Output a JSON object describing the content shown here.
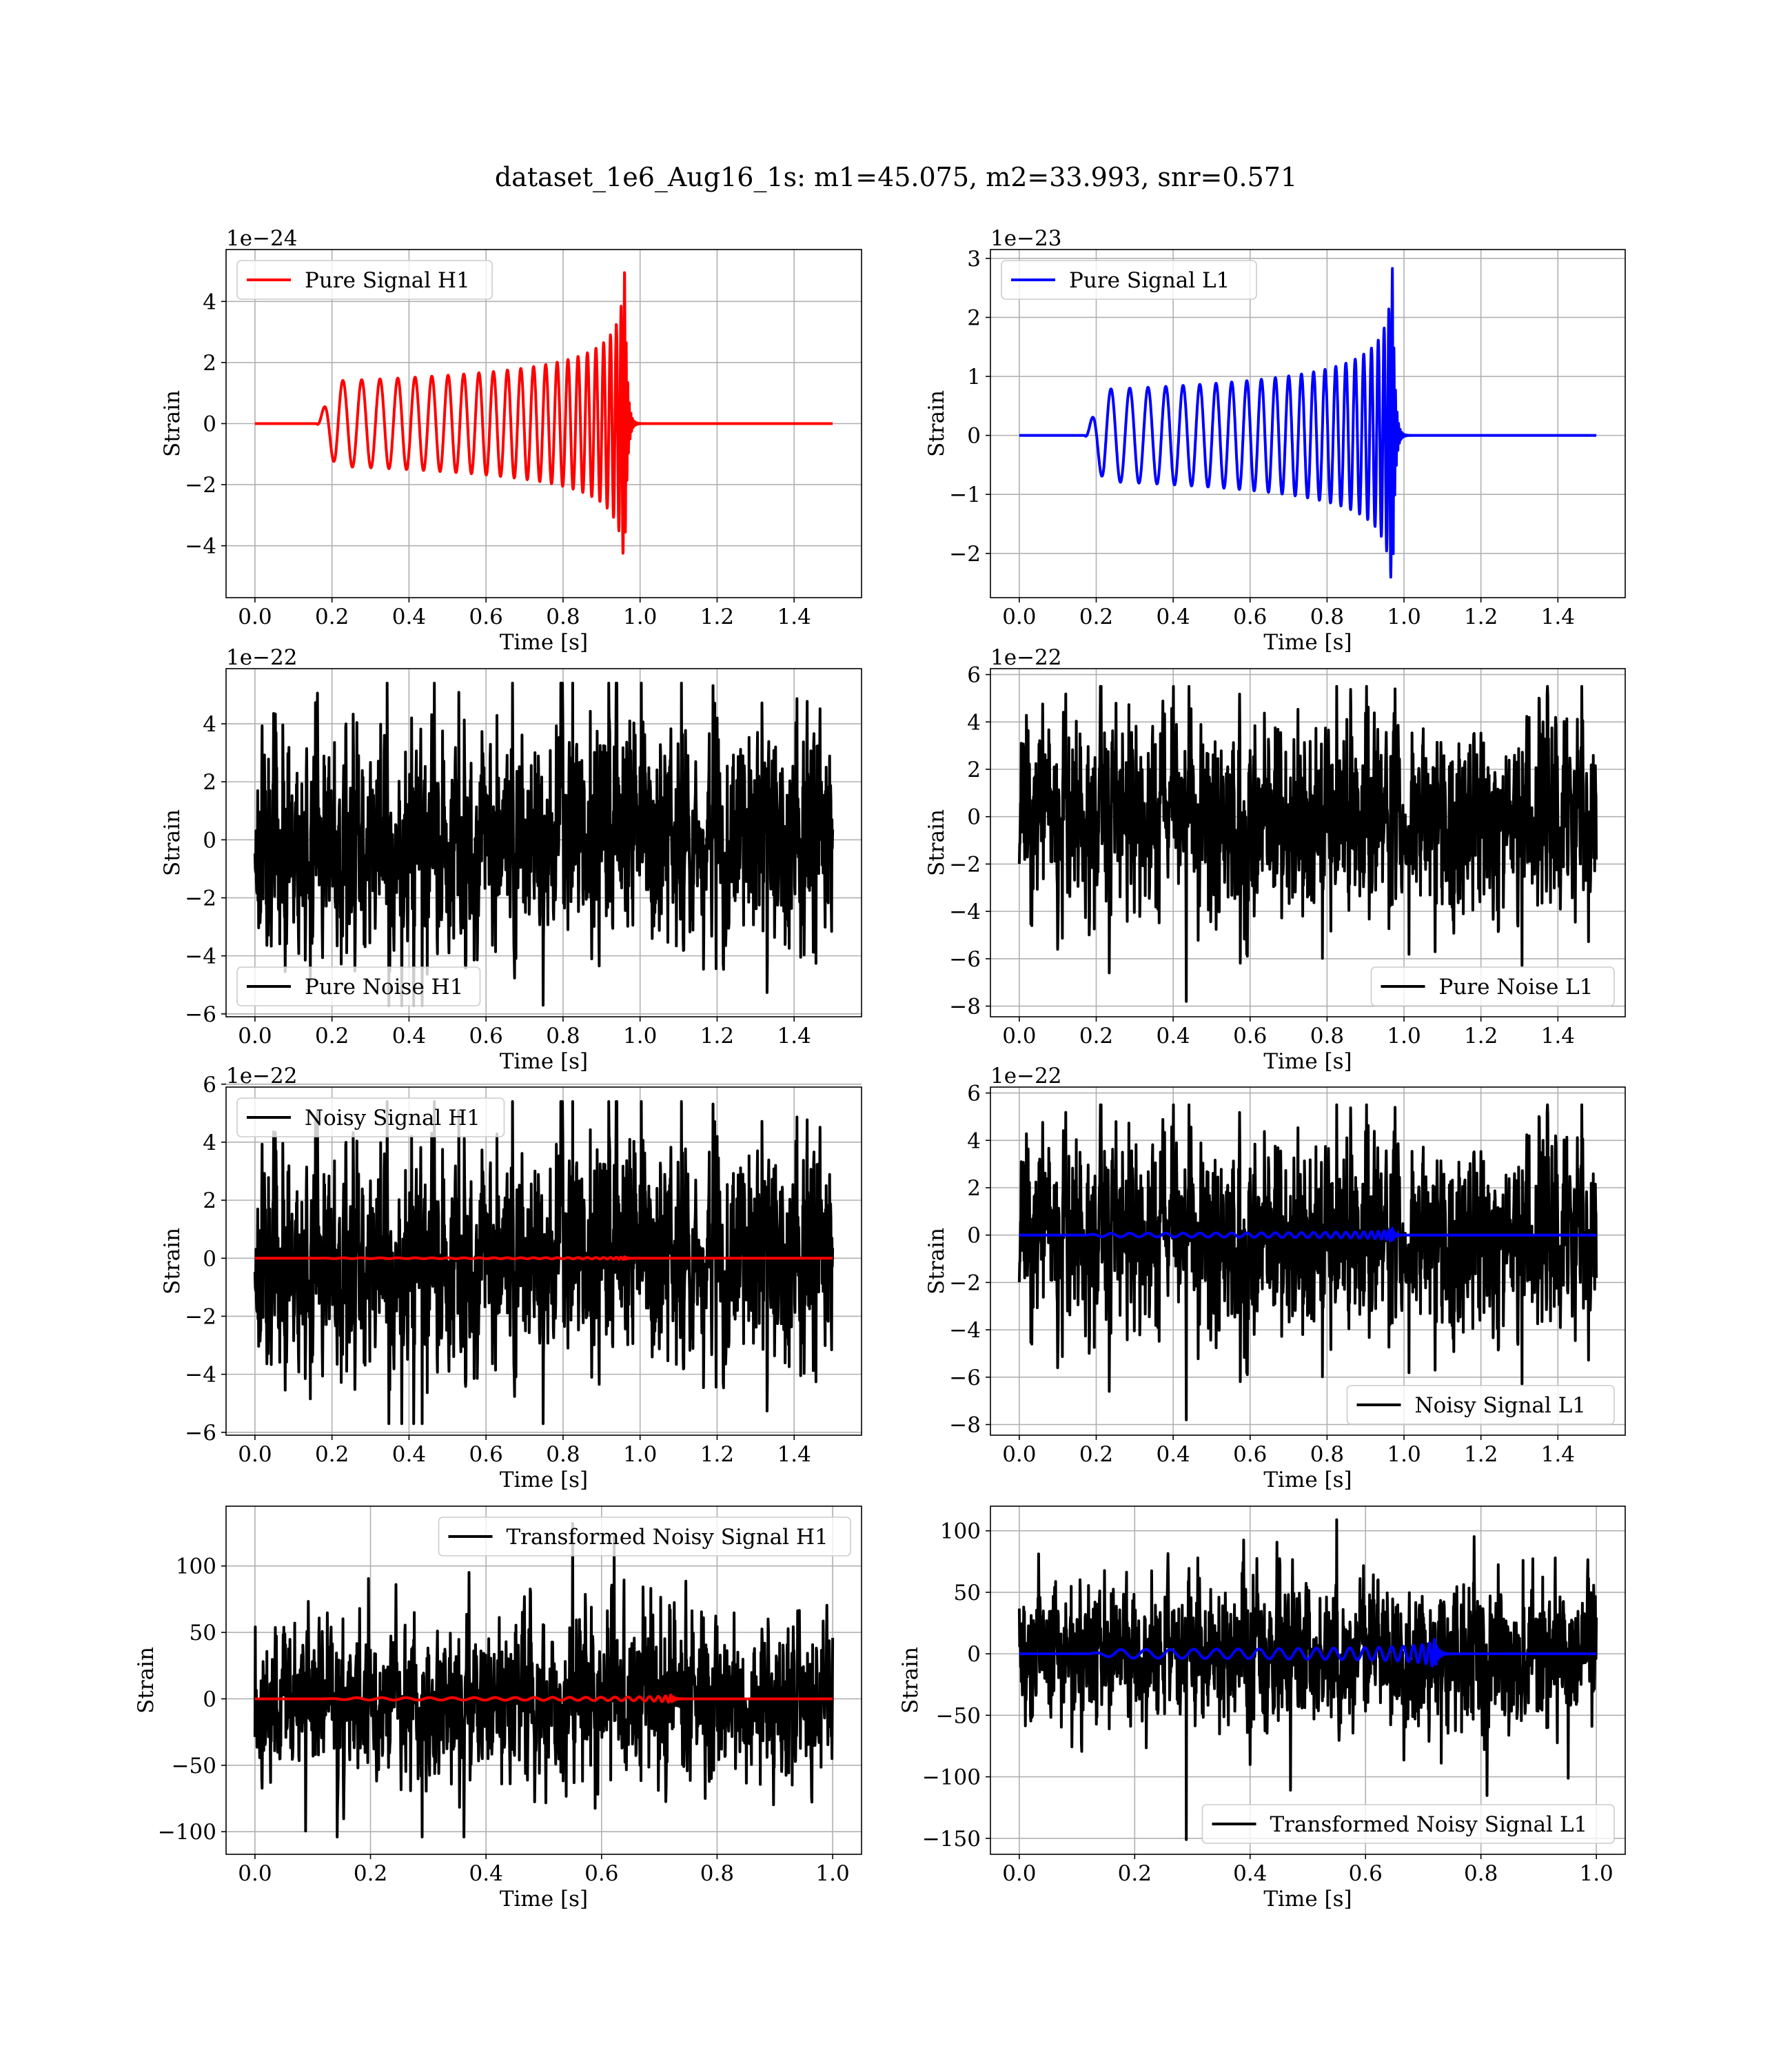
{
  "suptitle": "dataset_1e6_Aug16_1s: m1=45.075, m2=33.993, snr=0.571",
  "colors": {
    "H1_signal": "#ff0000",
    "L1_signal": "#0000ff",
    "noise": "#000000",
    "grid": "#b0b0b0"
  },
  "chart_data": [
    {
      "id": "pure-signal-h1",
      "type": "line",
      "title": "",
      "xlabel": "Time [s]",
      "ylabel": "Strain",
      "offset_text": "1e−24",
      "xlim": [
        -0.075,
        1.575
      ],
      "ylim": [
        -5.7,
        5.7
      ],
      "xticks": [
        0.0,
        0.2,
        0.4,
        0.6,
        0.8,
        1.0,
        1.2,
        1.4
      ],
      "xtick_labels": [
        "0.0",
        "0.2",
        "0.4",
        "0.6",
        "0.8",
        "1.0",
        "1.2",
        "1.4"
      ],
      "yticks": [
        -4,
        -2,
        0,
        2,
        4
      ],
      "ytick_labels": [
        "−4",
        "−2",
        "0",
        "2",
        "4"
      ],
      "grid": true,
      "legend_position": "upper-left",
      "series": [
        {
          "name": "Pure Signal H1",
          "color": "#ff0000",
          "kind": "chirp",
          "t_start": 0.16,
          "t_merger": 0.96,
          "t_end": 1.5,
          "peak": 5.2,
          "x_range": [
            0.0,
            1.5
          ]
        }
      ]
    },
    {
      "id": "pure-signal-l1",
      "type": "line",
      "title": "",
      "xlabel": "Time [s]",
      "ylabel": "Strain",
      "offset_text": "1e−23",
      "xlim": [
        -0.075,
        1.575
      ],
      "ylim": [
        -2.75,
        3.15
      ],
      "xticks": [
        0.0,
        0.2,
        0.4,
        0.6,
        0.8,
        1.0,
        1.2,
        1.4
      ],
      "xtick_labels": [
        "0.0",
        "0.2",
        "0.4",
        "0.6",
        "0.8",
        "1.0",
        "1.2",
        "1.4"
      ],
      "yticks": [
        -2,
        -1,
        0,
        1,
        2,
        3
      ],
      "ytick_labels": [
        "−2",
        "−1",
        "0",
        "1",
        "2",
        "3"
      ],
      "grid": true,
      "legend_position": "upper-left",
      "series": [
        {
          "name": "Pure Signal L1",
          "color": "#0000ff",
          "kind": "chirp",
          "t_start": 0.17,
          "t_merger": 0.97,
          "t_end": 1.5,
          "peak": 2.9,
          "x_range": [
            0.0,
            1.5
          ]
        }
      ]
    },
    {
      "id": "pure-noise-h1",
      "type": "line",
      "title": "",
      "xlabel": "Time [s]",
      "ylabel": "Strain",
      "offset_text": "1e−22",
      "xlim": [
        -0.075,
        1.575
      ],
      "ylim": [
        -6.1,
        5.9
      ],
      "xticks": [
        0.0,
        0.2,
        0.4,
        0.6,
        0.8,
        1.0,
        1.2,
        1.4
      ],
      "xtick_labels": [
        "0.0",
        "0.2",
        "0.4",
        "0.6",
        "0.8",
        "1.0",
        "1.2",
        "1.4"
      ],
      "yticks": [
        -6,
        -4,
        -2,
        0,
        2,
        4
      ],
      "ytick_labels": [
        "−6",
        "−4",
        "−2",
        "0",
        "2",
        "4"
      ],
      "grid": true,
      "legend_position": "lower-left",
      "series": [
        {
          "name": "Pure Noise H1",
          "color": "#000000",
          "kind": "noise",
          "amplitude": 1.7,
          "seed": 11,
          "x_range": [
            0.0,
            1.5
          ],
          "min": -5.7,
          "max": 5.4
        }
      ]
    },
    {
      "id": "pure-noise-l1",
      "type": "line",
      "title": "",
      "xlabel": "Time [s]",
      "ylabel": "Strain",
      "offset_text": "1e−22",
      "xlim": [
        -0.075,
        1.575
      ],
      "ylim": [
        -8.45,
        6.25
      ],
      "xticks": [
        0.0,
        0.2,
        0.4,
        0.6,
        0.8,
        1.0,
        1.2,
        1.4
      ],
      "xtick_labels": [
        "0.0",
        "0.2",
        "0.4",
        "0.6",
        "0.8",
        "1.0",
        "1.2",
        "1.4"
      ],
      "yticks": [
        -8,
        -6,
        -4,
        -2,
        0,
        2,
        4,
        6
      ],
      "ytick_labels": [
        "−8",
        "−6",
        "−4",
        "−2",
        "0",
        "2",
        "4",
        "6"
      ],
      "grid": true,
      "legend_position": "lower-right",
      "series": [
        {
          "name": "Pure Noise L1",
          "color": "#000000",
          "kind": "noise",
          "amplitude": 1.8,
          "seed": 23,
          "x_range": [
            0.0,
            1.5
          ],
          "min": -7.8,
          "max": 5.5
        }
      ]
    },
    {
      "id": "noisy-signal-h1",
      "type": "line",
      "title": "",
      "xlabel": "Time [s]",
      "ylabel": "Strain",
      "offset_text": "1e−22",
      "xlim": [
        -0.075,
        1.575
      ],
      "ylim": [
        -6.1,
        5.9
      ],
      "xticks": [
        0.0,
        0.2,
        0.4,
        0.6,
        0.8,
        1.0,
        1.2,
        1.4
      ],
      "xtick_labels": [
        "0.0",
        "0.2",
        "0.4",
        "0.6",
        "0.8",
        "1.0",
        "1.2",
        "1.4"
      ],
      "yticks": [
        -6,
        -4,
        -2,
        0,
        2,
        4,
        6
      ],
      "ytick_labels": [
        "−6",
        "−4",
        "−2",
        "0",
        "2",
        "4",
        "6"
      ],
      "grid": true,
      "legend_position": "upper-left",
      "series": [
        {
          "name": "Noisy Signal H1",
          "color": "#000000",
          "kind": "noise",
          "amplitude": 1.7,
          "seed": 11,
          "x_range": [
            0.0,
            1.5
          ],
          "min": -5.7,
          "max": 5.4
        },
        {
          "name": "",
          "color": "#ff0000",
          "kind": "chirp",
          "t_start": 0.16,
          "t_merger": 0.96,
          "t_end": 1.5,
          "peak": 0.052,
          "x_range": [
            0.0,
            1.5
          ]
        }
      ]
    },
    {
      "id": "noisy-signal-l1",
      "type": "line",
      "title": "",
      "xlabel": "Time [s]",
      "ylabel": "Strain",
      "offset_text": "1e−22",
      "xlim": [
        -0.075,
        1.575
      ],
      "ylim": [
        -8.45,
        6.25
      ],
      "xticks": [
        0.0,
        0.2,
        0.4,
        0.6,
        0.8,
        1.0,
        1.2,
        1.4
      ],
      "xtick_labels": [
        "0.0",
        "0.2",
        "0.4",
        "0.6",
        "0.8",
        "1.0",
        "1.2",
        "1.4"
      ],
      "yticks": [
        -8,
        -6,
        -4,
        -2,
        0,
        2,
        4,
        6
      ],
      "ytick_labels": [
        "−8",
        "−6",
        "−4",
        "−2",
        "0",
        "2",
        "4",
        "6"
      ],
      "grid": true,
      "legend_position": "lower-right",
      "series": [
        {
          "name": "Noisy Signal L1",
          "color": "#000000",
          "kind": "noise",
          "amplitude": 1.8,
          "seed": 23,
          "x_range": [
            0.0,
            1.5
          ],
          "min": -7.8,
          "max": 5.5
        },
        {
          "name": "",
          "color": "#0000ff",
          "kind": "chirp",
          "t_start": 0.17,
          "t_merger": 0.97,
          "t_end": 1.5,
          "peak": 0.29,
          "x_range": [
            0.0,
            1.5
          ]
        }
      ]
    },
    {
      "id": "transformed-noisy-signal-h1",
      "type": "line",
      "title": "",
      "xlabel": "Time [s]",
      "ylabel": "Strain",
      "offset_text": "",
      "xlim": [
        -0.05,
        1.05
      ],
      "ylim": [
        -117,
        145
      ],
      "xticks": [
        0.0,
        0.2,
        0.4,
        0.6,
        0.8,
        1.0
      ],
      "xtick_labels": [
        "0.0",
        "0.2",
        "0.4",
        "0.6",
        "0.8",
        "1.0"
      ],
      "yticks": [
        -100,
        -50,
        0,
        50,
        100
      ],
      "ytick_labels": [
        "−100",
        "−50",
        "0",
        "50",
        "100"
      ],
      "grid": true,
      "legend_position": "upper-right",
      "series": [
        {
          "name": "Transformed Noisy Signal H1",
          "color": "#000000",
          "kind": "noise",
          "amplitude": 26,
          "seed": 37,
          "x_range": [
            0.0,
            1.0
          ],
          "min": -104,
          "max": 132
        },
        {
          "name": "",
          "color": "#ff0000",
          "kind": "chirp",
          "t_start": 0.12,
          "t_merger": 0.72,
          "t_end": 1.0,
          "peak": 3,
          "x_range": [
            0.0,
            1.0
          ]
        }
      ]
    },
    {
      "id": "transformed-noisy-signal-l1",
      "type": "line",
      "title": "",
      "xlabel": "Time [s]",
      "ylabel": "Strain",
      "offset_text": "",
      "xlim": [
        -0.05,
        1.05
      ],
      "ylim": [
        -163,
        120
      ],
      "xticks": [
        0.0,
        0.2,
        0.4,
        0.6,
        0.8,
        1.0
      ],
      "xtick_labels": [
        "0.0",
        "0.2",
        "0.4",
        "0.6",
        "0.8",
        "1.0"
      ],
      "yticks": [
        -150,
        -100,
        -50,
        0,
        50,
        100
      ],
      "ytick_labels": [
        "−150",
        "−100",
        "−50",
        "0",
        "50",
        "100"
      ],
      "grid": true,
      "legend_position": "lower-right",
      "series": [
        {
          "name": "Transformed Noisy Signal L1",
          "color": "#000000",
          "kind": "noise",
          "amplitude": 26,
          "seed": 53,
          "x_range": [
            0.0,
            1.0
          ],
          "min": -151,
          "max": 109
        },
        {
          "name": "",
          "color": "#0000ff",
          "kind": "chirp",
          "t_start": 0.12,
          "t_merger": 0.72,
          "t_end": 1.0,
          "peak": 12,
          "x_range": [
            0.0,
            1.0
          ]
        }
      ]
    }
  ]
}
